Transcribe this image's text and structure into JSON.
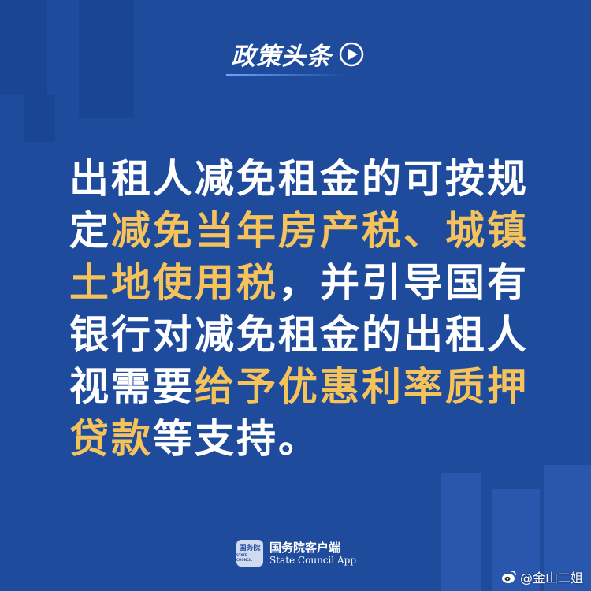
{
  "header": {
    "title": "政策头条"
  },
  "main": {
    "segments": [
      {
        "text": "出租人减免租金的可按规定",
        "highlight": false
      },
      {
        "text": "减免当年房产税、城镇土地使用税",
        "highlight": true
      },
      {
        "text": "，并引导国有银行对减免租金的出租人视需要",
        "highlight": false
      },
      {
        "text": "给予优惠利率质押贷款",
        "highlight": true
      },
      {
        "text": "等支持。",
        "highlight": false
      }
    ]
  },
  "footer": {
    "logo_badge": "国务院",
    "logo_badge_sub": "STATE COUNCIL",
    "logo_cn": "国务院客户端",
    "logo_en": "State Council App"
  },
  "watermark": {
    "text": "@金山二姐"
  },
  "colors": {
    "background": "#1f4b9c",
    "highlight": "#f6c35b",
    "text": "#ffffff"
  },
  "icons": {
    "header": "play-icon",
    "watermark": "weibo-icon"
  }
}
